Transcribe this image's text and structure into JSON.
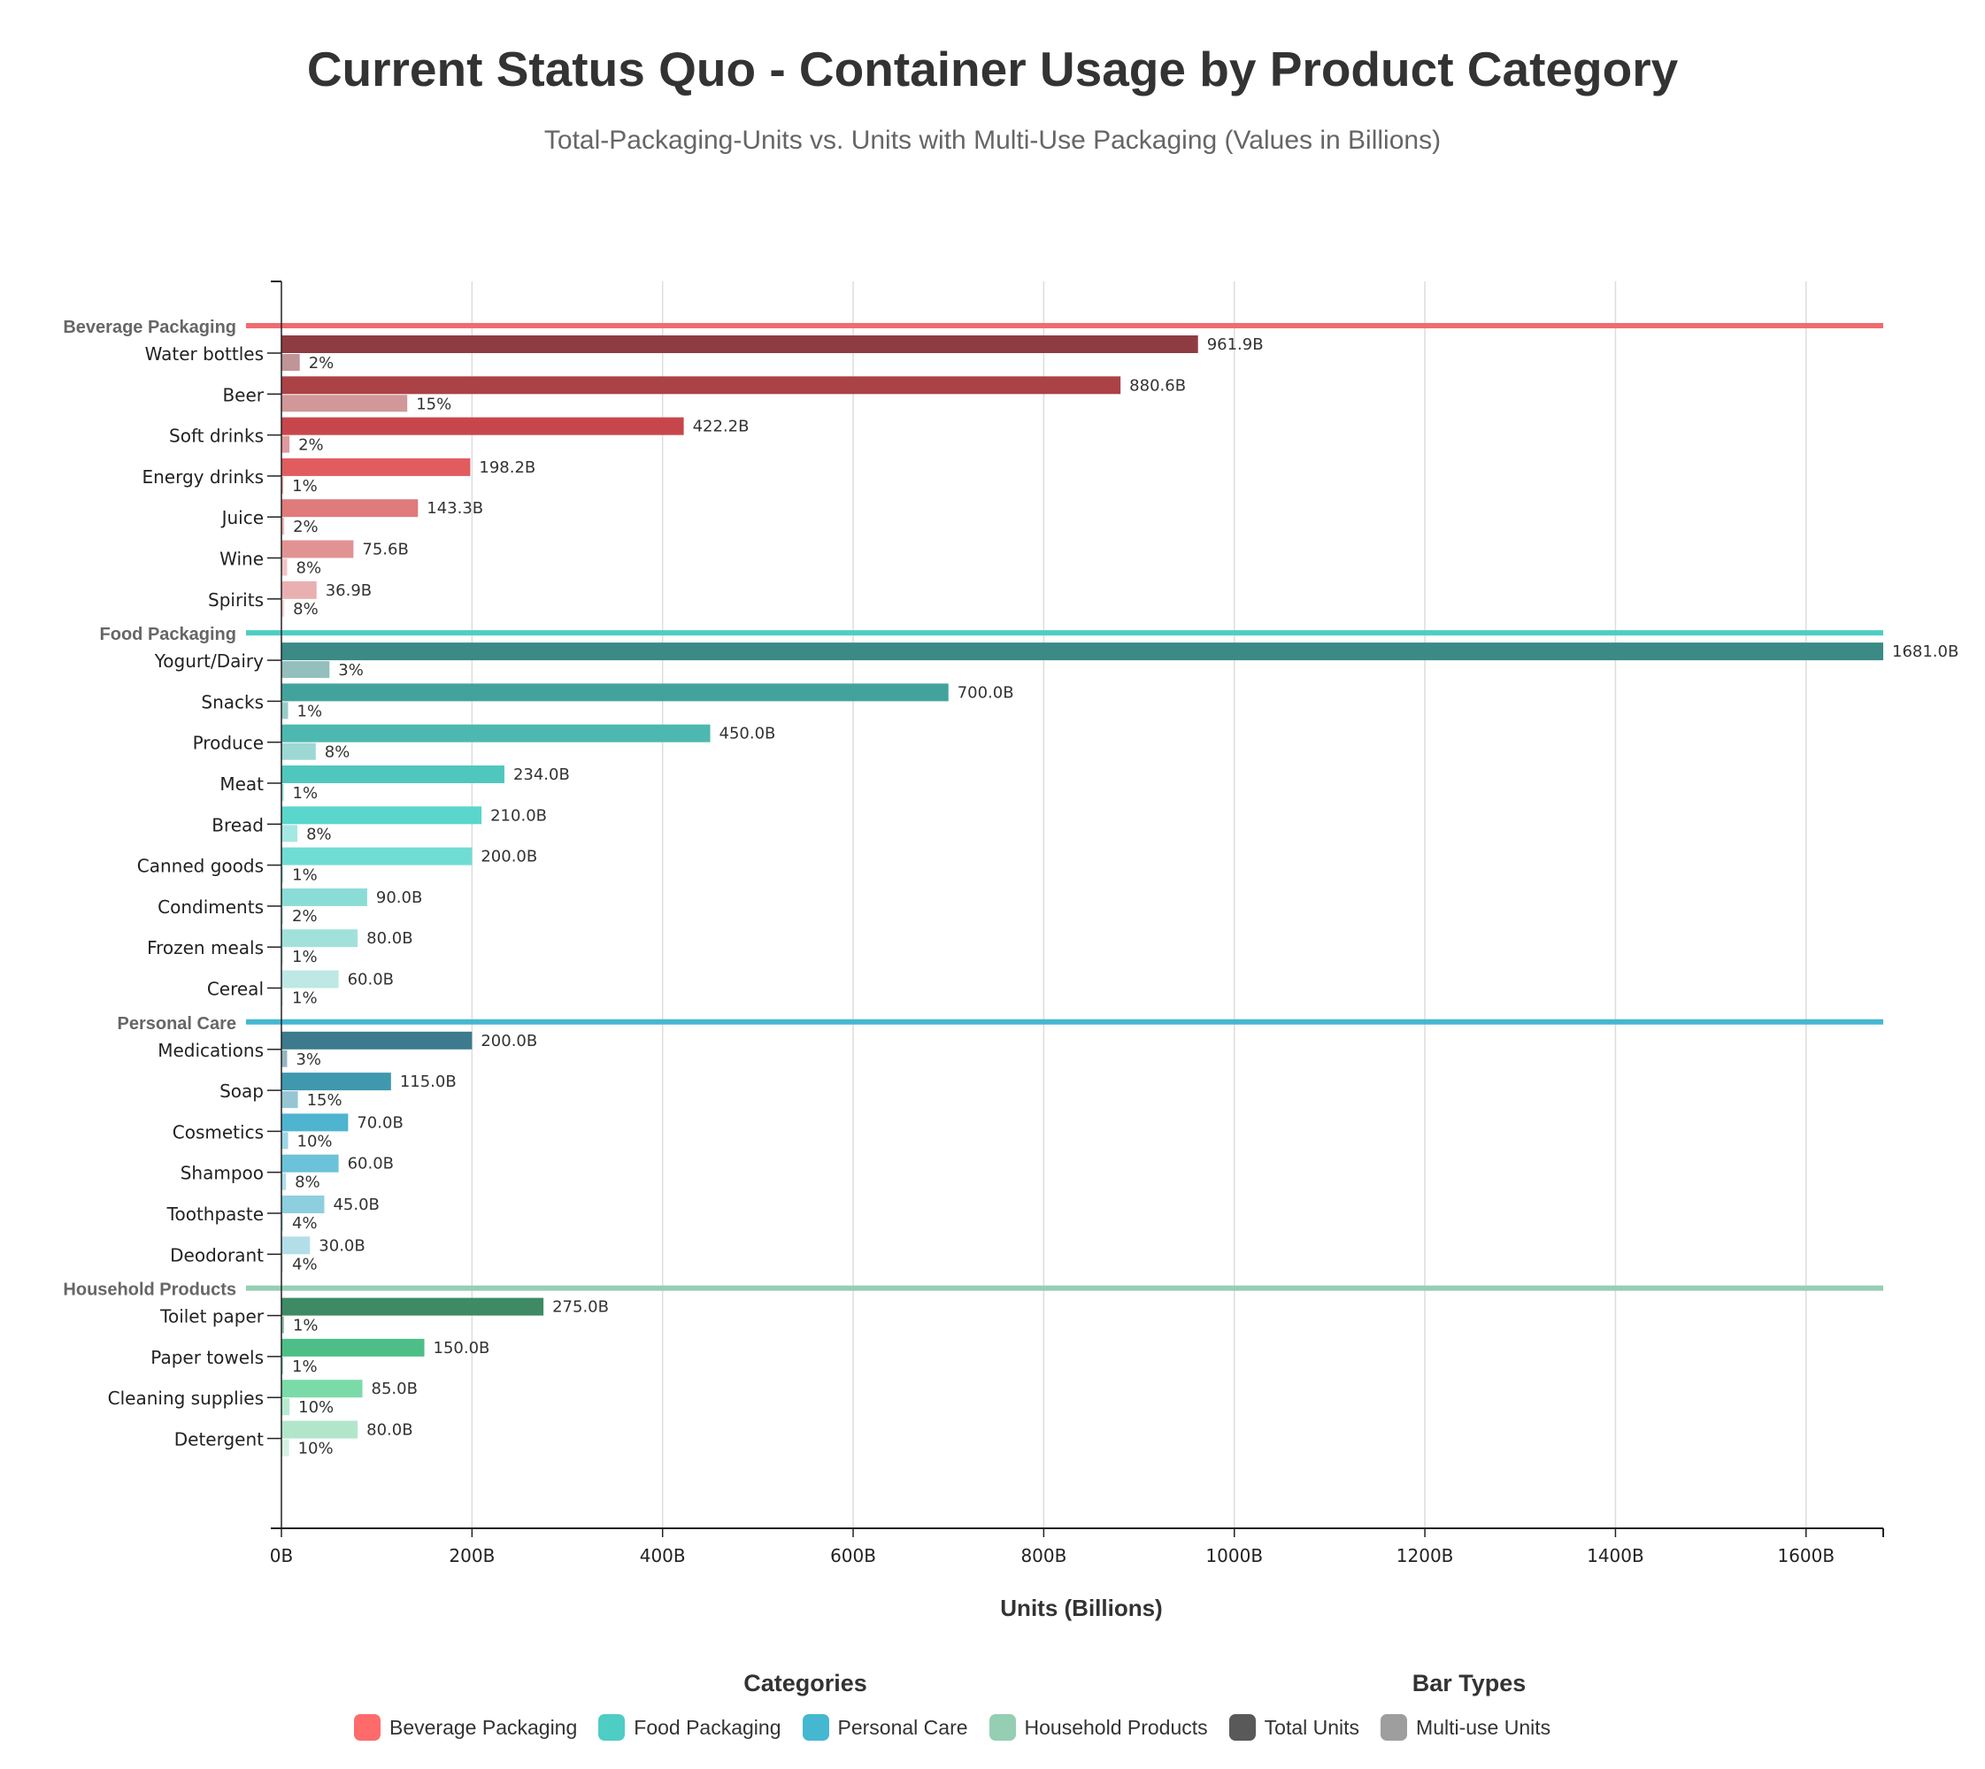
{
  "chart_data": {
    "type": "bar",
    "orientation": "horizontal",
    "title": "Current Status Quo - Container Usage by Product Category",
    "subtitle": "Total-Packaging-Units vs. Units with Multi-Use Packaging (Values in Billions)",
    "xlabel": "Units (Billions)",
    "xlim": [
      0,
      1681
    ],
    "x_ticks": [
      0,
      200,
      400,
      600,
      800,
      1000,
      1200,
      1400,
      1600
    ],
    "x_tick_labels": [
      "0B",
      "200B",
      "400B",
      "600B",
      "800B",
      "1000B",
      "1200B",
      "1400B",
      "1600B"
    ],
    "grid": "vertical",
    "groups": [
      {
        "name": "Beverage Packaging",
        "color": "#F06B6F",
        "items": [
          {
            "label": "Water bottles",
            "total": 961.9,
            "total_label": "961.9B",
            "multi_use_pct": 2,
            "multi_use_label": "2%",
            "color": "#8E3C42"
          },
          {
            "label": "Beer",
            "total": 880.6,
            "total_label": "880.6B",
            "multi_use_pct": 15,
            "multi_use_label": "15%",
            "color": "#AB4246"
          },
          {
            "label": "Soft drinks",
            "total": 422.2,
            "total_label": "422.2B",
            "multi_use_pct": 2,
            "multi_use_label": "2%",
            "color": "#C7464B"
          },
          {
            "label": "Energy drinks",
            "total": 198.2,
            "total_label": "198.2B",
            "multi_use_pct": 1,
            "multi_use_label": "1%",
            "color": "#E05C5F"
          },
          {
            "label": "Juice",
            "total": 143.3,
            "total_label": "143.3B",
            "multi_use_pct": 2,
            "multi_use_label": "2%",
            "color": "#E07A7B"
          },
          {
            "label": "Wine",
            "total": 75.6,
            "total_label": "75.6B",
            "multi_use_pct": 8,
            "multi_use_label": "8%",
            "color": "#E19394"
          },
          {
            "label": "Spirits",
            "total": 36.9,
            "total_label": "36.9B",
            "multi_use_pct": 8,
            "multi_use_label": "8%",
            "color": "#E8B0B1"
          }
        ]
      },
      {
        "name": "Food Packaging",
        "color": "#4ECDC4",
        "items": [
          {
            "label": "Yogurt/Dairy",
            "total": 1681.0,
            "total_label": "1681.0B",
            "multi_use_pct": 3,
            "multi_use_label": "3%",
            "color": "#3B8A85"
          },
          {
            "label": "Snacks",
            "total": 700.0,
            "total_label": "700.0B",
            "multi_use_pct": 1,
            "multi_use_label": "1%",
            "color": "#43A39C"
          },
          {
            "label": "Produce",
            "total": 450.0,
            "total_label": "450.0B",
            "multi_use_pct": 8,
            "multi_use_label": "8%",
            "color": "#4DB8B0"
          },
          {
            "label": "Meat",
            "total": 234.0,
            "total_label": "234.0B",
            "multi_use_pct": 1,
            "multi_use_label": "1%",
            "color": "#4FC7BE"
          },
          {
            "label": "Bread",
            "total": 210.0,
            "total_label": "210.0B",
            "multi_use_pct": 8,
            "multi_use_label": "8%",
            "color": "#5AD6CC"
          },
          {
            "label": "Canned goods",
            "total": 200.0,
            "total_label": "200.0B",
            "multi_use_pct": 1,
            "multi_use_label": "1%",
            "color": "#6FDDD4"
          },
          {
            "label": "Condiments",
            "total": 90.0,
            "total_label": "90.0B",
            "multi_use_pct": 2,
            "multi_use_label": "2%",
            "color": "#8ADDD6"
          },
          {
            "label": "Frozen meals",
            "total": 80.0,
            "total_label": "80.0B",
            "multi_use_pct": 1,
            "multi_use_label": "1%",
            "color": "#A2E1DB"
          },
          {
            "label": "Cereal",
            "total": 60.0,
            "total_label": "60.0B",
            "multi_use_pct": 1,
            "multi_use_label": "1%",
            "color": "#BDE8E3"
          }
        ]
      },
      {
        "name": "Personal Care",
        "color": "#45B7D1",
        "items": [
          {
            "label": "Medications",
            "total": 200.0,
            "total_label": "200.0B",
            "multi_use_pct": 3,
            "multi_use_label": "3%",
            "color": "#3D7A8E"
          },
          {
            "label": "Soap",
            "total": 115.0,
            "total_label": "115.0B",
            "multi_use_pct": 15,
            "multi_use_label": "15%",
            "color": "#3F98AE"
          },
          {
            "label": "Cosmetics",
            "total": 70.0,
            "total_label": "70.0B",
            "multi_use_pct": 10,
            "multi_use_label": "10%",
            "color": "#4FB4D0"
          },
          {
            "label": "Shampoo",
            "total": 60.0,
            "total_label": "60.0B",
            "multi_use_pct": 8,
            "multi_use_label": "8%",
            "color": "#6CC2D8"
          },
          {
            "label": "Toothpaste",
            "total": 45.0,
            "total_label": "45.0B",
            "multi_use_pct": 4,
            "multi_use_label": "4%",
            "color": "#8DCFDF"
          },
          {
            "label": "Deodorant",
            "total": 30.0,
            "total_label": "30.0B",
            "multi_use_pct": 4,
            "multi_use_label": "4%",
            "color": "#B3DEE8"
          }
        ]
      },
      {
        "name": "Household Products",
        "color": "#96CEB4",
        "items": [
          {
            "label": "Toilet paper",
            "total": 275.0,
            "total_label": "275.0B",
            "multi_use_pct": 1,
            "multi_use_label": "1%",
            "color": "#3D8A64"
          },
          {
            "label": "Paper towels",
            "total": 150.0,
            "total_label": "150.0B",
            "multi_use_pct": 1,
            "multi_use_label": "1%",
            "color": "#4DBF86"
          },
          {
            "label": "Cleaning supplies",
            "total": 85.0,
            "total_label": "85.0B",
            "multi_use_pct": 10,
            "multi_use_label": "10%",
            "color": "#7ADBA8"
          },
          {
            "label": "Detergent",
            "total": 80.0,
            "total_label": "80.0B",
            "multi_use_pct": 10,
            "multi_use_label": "10%",
            "color": "#B2E6CB"
          }
        ]
      }
    ],
    "legend": {
      "placement": "bottom",
      "categories_title": "Categories",
      "categories": [
        {
          "name": "Beverage Packaging",
          "color": "#FF6B6B"
        },
        {
          "name": "Food Packaging",
          "color": "#4ECDC4"
        },
        {
          "name": "Personal Care",
          "color": "#45B7D1"
        },
        {
          "name": "Household Products",
          "color": "#96CEB4"
        }
      ],
      "bar_types_title": "Bar Types",
      "bar_types": [
        {
          "name": "Total Units",
          "color": "#595959"
        },
        {
          "name": "Multi-use Units",
          "color": "#9E9E9E"
        }
      ]
    }
  }
}
